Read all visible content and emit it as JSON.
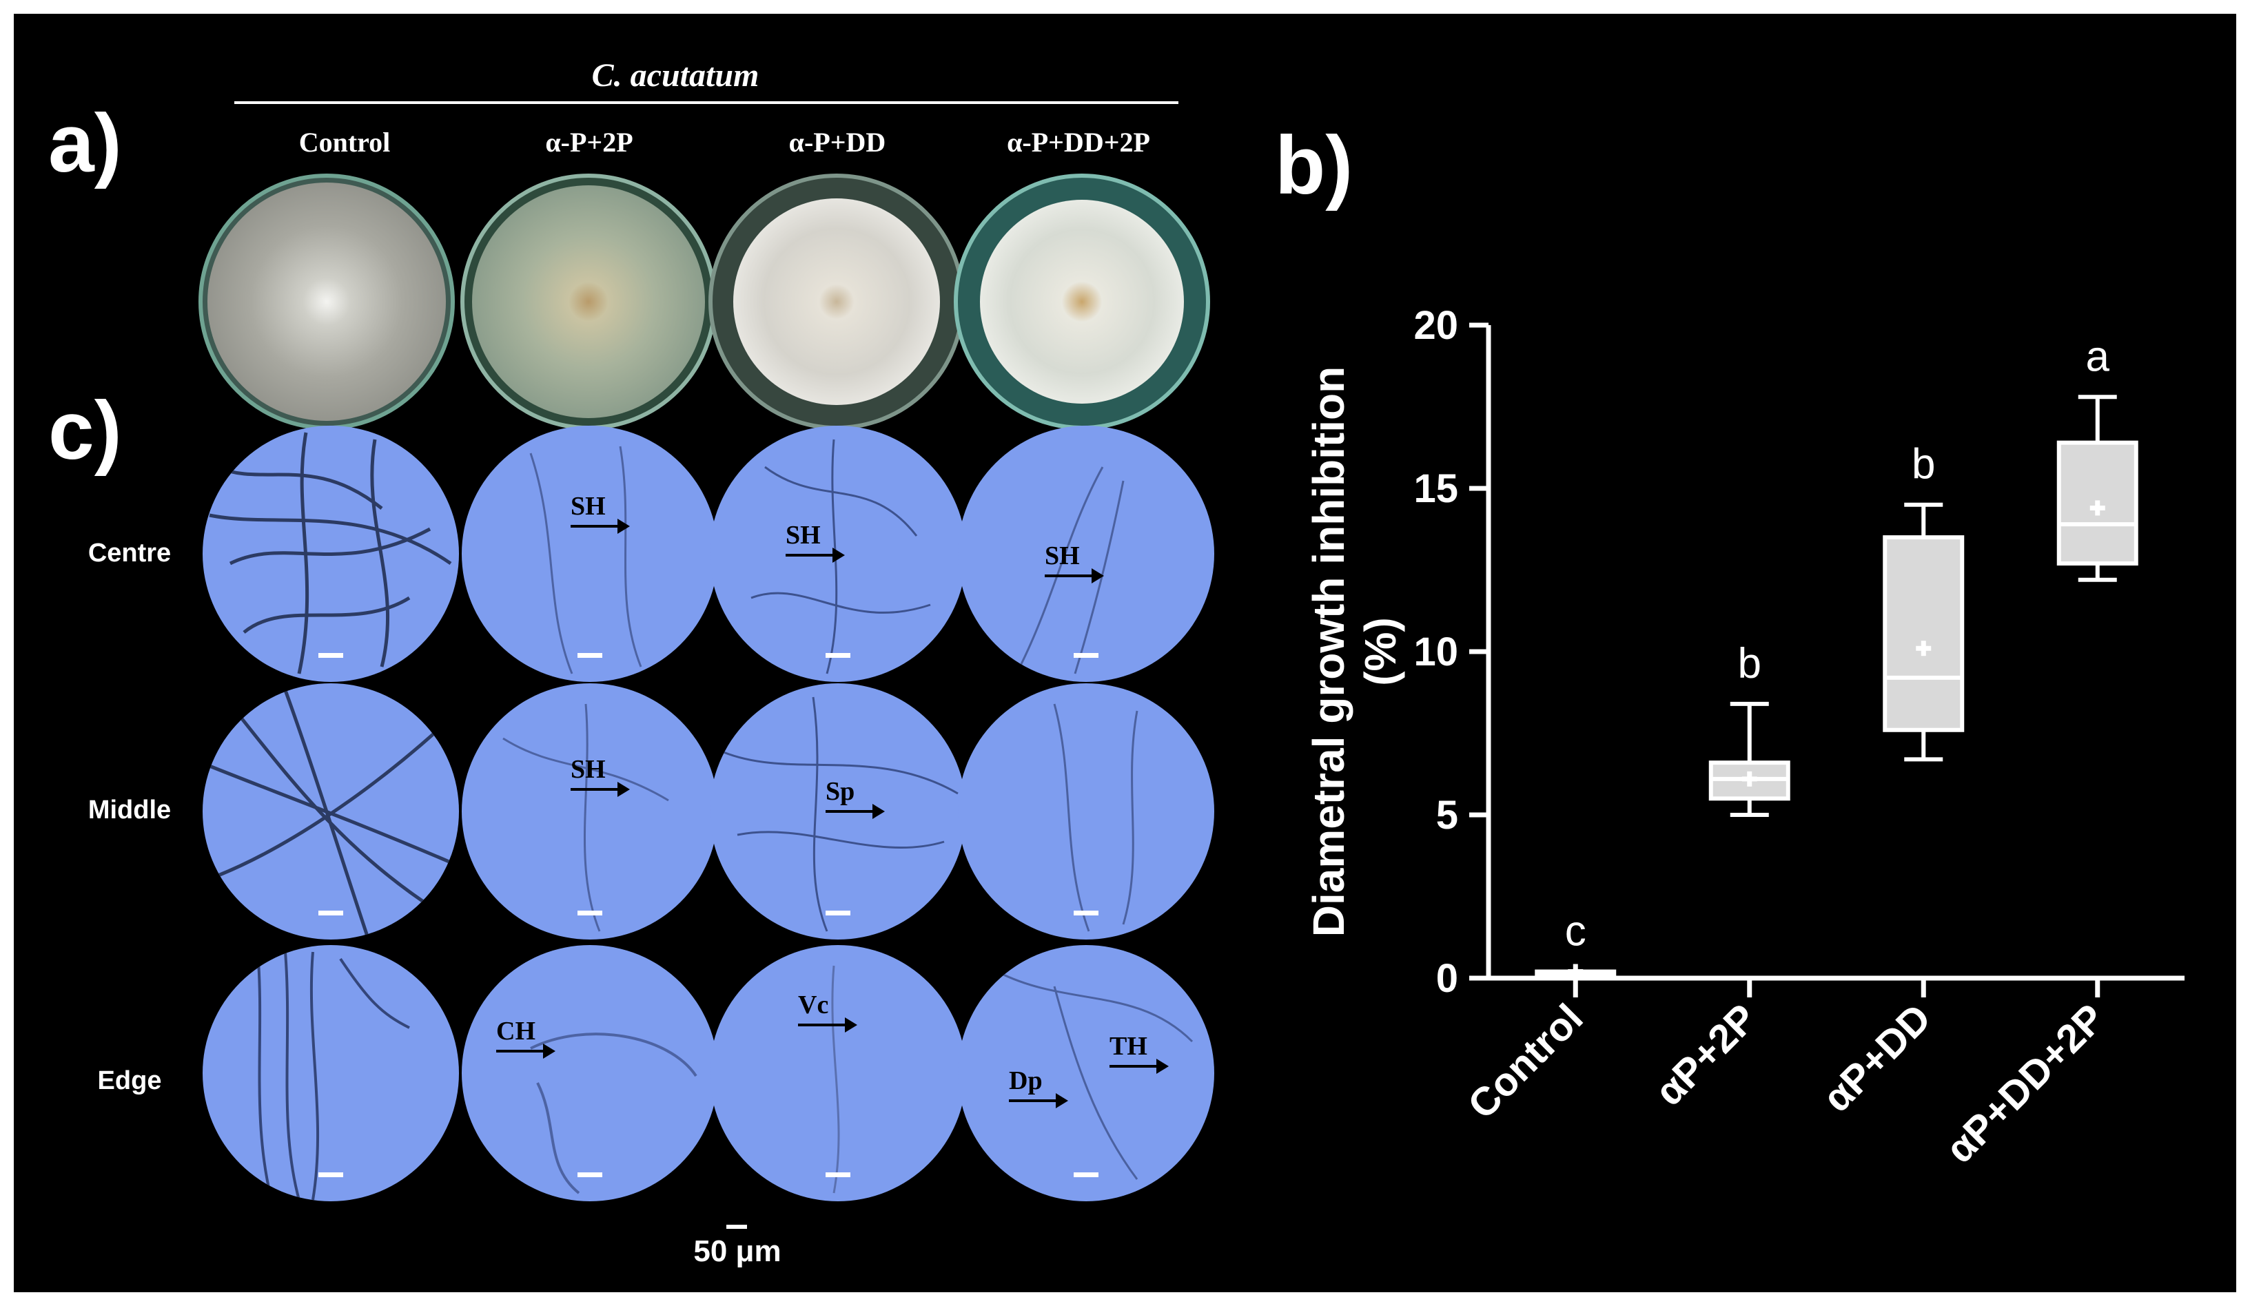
{
  "panels": {
    "a": "a)",
    "b": "b)",
    "c": "c)"
  },
  "species_title": "C. acutatum",
  "plate_columns": [
    "Control",
    "α-P+2P",
    "α-P+DD",
    "α-P+DD+2P"
  ],
  "micro_rows": [
    "Centre",
    "Middle",
    "Edge"
  ],
  "annotations": {
    "centre_2": "SH",
    "centre_3": "SH",
    "centre_4": "SH",
    "middle_2": "SH",
    "middle_3": "Sp",
    "edge_2": "CH",
    "edge_3": "Vc",
    "edge_4a": "Dp",
    "edge_4b": "TH"
  },
  "scale_label": "50 μm",
  "colors": {
    "background": "#000000",
    "micro_field": "#7E9DEF",
    "chart_foreground": "#ffffff",
    "box_fill": "#D9D9D9"
  },
  "chart_data": {
    "type": "box",
    "ylabel_line1": "Diametral growth inhibition",
    "ylabel_line2": "(%)",
    "ylim": [
      0,
      20
    ],
    "yticks": [
      "0",
      "5",
      "10",
      "15",
      "20"
    ],
    "categories": [
      "Control",
      "αP+2P",
      "αP+DD",
      "αP+DD+2P"
    ],
    "boxes": [
      {
        "min": 0.2,
        "q1": 0.2,
        "median": 0.2,
        "q3": 0.2,
        "max": 0.2,
        "mean": 0.2,
        "letter": "c"
      },
      {
        "min": 5.0,
        "q1": 5.5,
        "median": 6.1,
        "q3": 6.6,
        "max": 8.4,
        "mean": 6.1,
        "letter": "b"
      },
      {
        "min": 6.7,
        "q1": 7.6,
        "median": 9.2,
        "q3": 13.5,
        "max": 14.5,
        "mean": 10.1,
        "letter": "b"
      },
      {
        "min": 12.2,
        "q1": 12.7,
        "median": 13.9,
        "q3": 16.4,
        "max": 17.8,
        "mean": 14.4,
        "letter": "a"
      }
    ]
  }
}
